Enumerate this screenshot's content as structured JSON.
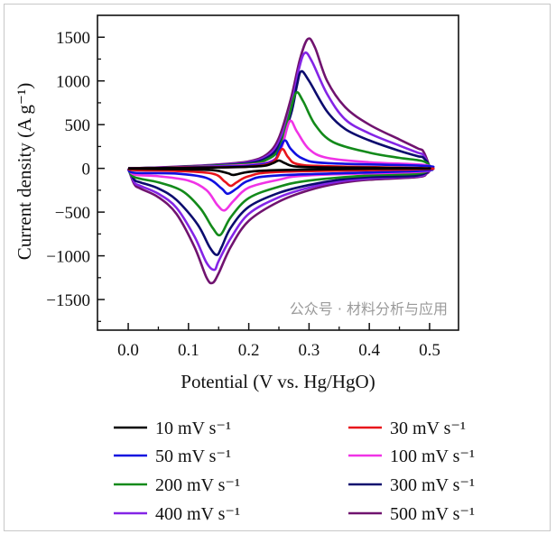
{
  "chart_data": {
    "type": "line",
    "xlabel": "Potential (V vs. Hg/HgO)",
    "ylabel": "Current density (A g⁻¹)",
    "xlim": [
      -0.051,
      0.548
    ],
    "ylim": [
      -1850,
      1750
    ],
    "xticks": [
      0.0,
      0.1,
      0.2,
      0.3,
      0.4,
      0.5
    ],
    "xtick_labels": [
      "0.0",
      "0.1",
      "0.2",
      "0.3",
      "0.4",
      "0.5"
    ],
    "yticks": [
      1500,
      1000,
      500,
      0,
      -500,
      -1000,
      -1500
    ],
    "ytick_labels": [
      "1500",
      "1000",
      "500",
      "0",
      "−500",
      "−1000",
      "−1500"
    ],
    "grid": false,
    "legend_placement": "bottom, below plot, two columns",
    "series": [
      {
        "name": "10 mV s⁻¹",
        "color": "#000000",
        "x": [
          0.0,
          0.15,
          0.22,
          0.24,
          0.25,
          0.26,
          0.28,
          0.35,
          0.5,
          0.4,
          0.25,
          0.2,
          0.175,
          0.165,
          0.14,
          0.08,
          0.01,
          0.0
        ],
        "y": [
          0,
          10,
          25,
          60,
          90,
          60,
          20,
          10,
          0,
          -5,
          -20,
          -40,
          -75,
          -55,
          -20,
          -10,
          -5,
          0
        ]
      },
      {
        "name": "30 mV s⁻¹",
        "color": "#e8141b",
        "x": [
          0.0,
          0.1,
          0.2,
          0.24,
          0.255,
          0.265,
          0.28,
          0.33,
          0.5,
          0.45,
          0.25,
          0.2,
          0.18,
          0.17,
          0.16,
          0.14,
          0.08,
          0.01,
          0.0
        ],
        "y": [
          0,
          10,
          20,
          70,
          220,
          130,
          50,
          25,
          0,
          -15,
          -40,
          -90,
          -160,
          -200,
          -150,
          -60,
          -30,
          -20,
          0
        ]
      },
      {
        "name": "50 mV s⁻¹",
        "color": "#1010e0",
        "x": [
          0.0,
          0.1,
          0.2,
          0.24,
          0.25,
          0.26,
          0.27,
          0.29,
          0.33,
          0.49,
          0.5,
          0.48,
          0.25,
          0.2,
          0.18,
          0.165,
          0.155,
          0.13,
          0.08,
          0.01,
          0.0
        ],
        "y": [
          0,
          12,
          30,
          80,
          200,
          320,
          220,
          110,
          60,
          30,
          0,
          -30,
          -80,
          -140,
          -230,
          -290,
          -230,
          -110,
          -60,
          -50,
          0
        ]
      },
      {
        "name": "100 mV s⁻¹",
        "color": "#f033e6",
        "x": [
          0.0,
          0.1,
          0.2,
          0.24,
          0.255,
          0.268,
          0.28,
          0.3,
          0.33,
          0.4,
          0.49,
          0.5,
          0.48,
          0.3,
          0.25,
          0.2,
          0.175,
          0.16,
          0.148,
          0.13,
          0.1,
          0.05,
          0.01,
          0.0
        ],
        "y": [
          0,
          15,
          40,
          90,
          250,
          540,
          420,
          220,
          120,
          70,
          40,
          0,
          -40,
          -80,
          -130,
          -220,
          -370,
          -480,
          -420,
          -250,
          -140,
          -90,
          -70,
          0
        ]
      },
      {
        "name": "200 mV s⁻¹",
        "color": "#138a1a",
        "x": [
          0.0,
          0.1,
          0.2,
          0.23,
          0.25,
          0.265,
          0.278,
          0.29,
          0.31,
          0.34,
          0.4,
          0.45,
          0.49,
          0.5,
          0.48,
          0.4,
          0.3,
          0.25,
          0.2,
          0.17,
          0.153,
          0.14,
          0.12,
          0.09,
          0.05,
          0.01,
          0.0
        ],
        "y": [
          0,
          18,
          50,
          100,
          220,
          550,
          860,
          770,
          500,
          300,
          180,
          120,
          80,
          0,
          -60,
          -80,
          -140,
          -210,
          -340,
          -560,
          -760,
          -680,
          -460,
          -260,
          -160,
          -100,
          0
        ]
      },
      {
        "name": "300 mV s⁻¹",
        "color": "#0b0b6e",
        "x": [
          0.0,
          0.05,
          0.1,
          0.15,
          0.2,
          0.23,
          0.25,
          0.27,
          0.28,
          0.287,
          0.3,
          0.33,
          0.36,
          0.4,
          0.45,
          0.48,
          0.49,
          0.5,
          0.48,
          0.4,
          0.35,
          0.3,
          0.25,
          0.2,
          0.17,
          0.155,
          0.147,
          0.135,
          0.115,
          0.08,
          0.05,
          0.02,
          0.01,
          0.0
        ],
        "y": [
          0,
          8,
          20,
          35,
          60,
          120,
          260,
          620,
          950,
          1110,
          1000,
          650,
          450,
          320,
          200,
          140,
          120,
          0,
          -80,
          -100,
          -130,
          -190,
          -280,
          -440,
          -680,
          -900,
          -990,
          -900,
          -640,
          -360,
          -230,
          -160,
          -130,
          0
        ]
      },
      {
        "name": "400 mV s⁻¹",
        "color": "#8424e6",
        "x": [
          0.0,
          0.05,
          0.1,
          0.15,
          0.2,
          0.23,
          0.25,
          0.27,
          0.283,
          0.293,
          0.305,
          0.33,
          0.36,
          0.4,
          0.45,
          0.48,
          0.49,
          0.5,
          0.495,
          0.48,
          0.4,
          0.35,
          0.3,
          0.25,
          0.2,
          0.17,
          0.15,
          0.143,
          0.13,
          0.11,
          0.08,
          0.05,
          0.02,
          0.01,
          0.0
        ],
        "y": [
          0,
          10,
          22,
          40,
          70,
          140,
          300,
          700,
          1130,
          1320,
          1220,
          850,
          560,
          400,
          260,
          180,
          150,
          0,
          -50,
          -90,
          -115,
          -150,
          -220,
          -330,
          -520,
          -800,
          -1060,
          -1160,
          -1080,
          -780,
          -450,
          -290,
          -200,
          -160,
          0
        ]
      },
      {
        "name": "500 mV s⁻¹",
        "color": "#70136f",
        "x": [
          0.0,
          0.05,
          0.1,
          0.15,
          0.2,
          0.23,
          0.25,
          0.27,
          0.285,
          0.298,
          0.31,
          0.33,
          0.36,
          0.4,
          0.45,
          0.48,
          0.49,
          0.5,
          0.495,
          0.48,
          0.4,
          0.35,
          0.3,
          0.25,
          0.2,
          0.17,
          0.15,
          0.14,
          0.13,
          0.11,
          0.08,
          0.05,
          0.02,
          0.01,
          0.0
        ],
        "y": [
          0,
          10,
          25,
          45,
          80,
          160,
          350,
          800,
          1250,
          1480,
          1380,
          1000,
          700,
          500,
          330,
          230,
          190,
          0,
          -60,
          -100,
          -130,
          -170,
          -250,
          -380,
          -600,
          -900,
          -1200,
          -1310,
          -1250,
          -900,
          -520,
          -330,
          -230,
          -180,
          0
        ]
      }
    ]
  },
  "watermark": "公众号 · 材料分析与应用"
}
